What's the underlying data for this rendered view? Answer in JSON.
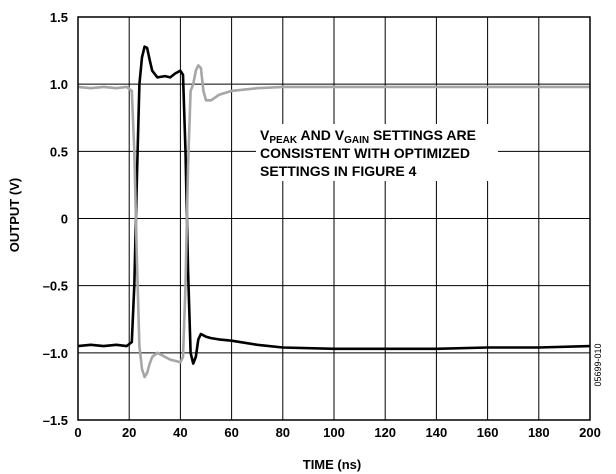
{
  "chart_data": {
    "type": "line",
    "xlabel": "TIME (ns)",
    "ylabel": "OUTPUT (V)",
    "xlim": [
      0,
      200
    ],
    "ylim": [
      -1.5,
      1.5
    ],
    "x_ticks": [
      0,
      20,
      40,
      60,
      80,
      100,
      120,
      140,
      160,
      180,
      200
    ],
    "x_tick_labels": [
      "0",
      "20",
      "40",
      "60",
      "80",
      "100",
      "120",
      "140",
      "160",
      "180",
      "200"
    ],
    "y_ticks": [
      1.5,
      1.0,
      0.5,
      0,
      -0.5,
      -1.0,
      -1.5
    ],
    "y_tick_labels": [
      "1.5",
      "1.0",
      "0.5",
      "0",
      "–0.5",
      "–1.0",
      "–1.5"
    ],
    "grid": true,
    "annotation": {
      "line1": {
        "a": "V",
        "a_sub": "PEAK",
        "b": " AND V",
        "b_sub": "GAIN",
        "c": " SETTINGS ARE"
      },
      "line2": "CONSISTENT WITH OPTIMIZED",
      "line3": "SETTINGS IN FIGURE 4"
    },
    "figure_code": "05699-010",
    "series": [
      {
        "color": "#000000",
        "points": [
          [
            0,
            -0.95
          ],
          [
            5,
            -0.94
          ],
          [
            10,
            -0.95
          ],
          [
            15,
            -0.94
          ],
          [
            19,
            -0.95
          ],
          [
            21,
            -0.92
          ],
          [
            22,
            -0.5
          ],
          [
            23,
            0.3
          ],
          [
            24,
            1.0
          ],
          [
            25,
            1.2
          ],
          [
            26,
            1.28
          ],
          [
            27,
            1.27
          ],
          [
            28,
            1.18
          ],
          [
            29,
            1.1
          ],
          [
            31,
            1.05
          ],
          [
            34,
            1.06
          ],
          [
            36,
            1.05
          ],
          [
            38,
            1.08
          ],
          [
            40,
            1.1
          ],
          [
            41,
            1.07
          ],
          [
            42,
            0.5
          ],
          [
            43,
            -0.4
          ],
          [
            44,
            -1.0
          ],
          [
            45,
            -1.08
          ],
          [
            46,
            -1.03
          ],
          [
            47,
            -0.9
          ],
          [
            48,
            -0.86
          ],
          [
            50,
            -0.88
          ],
          [
            52,
            -0.89
          ],
          [
            55,
            -0.9
          ],
          [
            60,
            -0.91
          ],
          [
            70,
            -0.94
          ],
          [
            80,
            -0.96
          ],
          [
            100,
            -0.97
          ],
          [
            120,
            -0.97
          ],
          [
            140,
            -0.97
          ],
          [
            160,
            -0.96
          ],
          [
            180,
            -0.96
          ],
          [
            200,
            -0.95
          ]
        ]
      },
      {
        "color": "#a6a6a6",
        "points": [
          [
            0,
            0.98
          ],
          [
            5,
            0.97
          ],
          [
            10,
            0.98
          ],
          [
            15,
            0.97
          ],
          [
            19,
            0.98
          ],
          [
            21,
            0.95
          ],
          [
            22,
            0.5
          ],
          [
            23,
            -0.3
          ],
          [
            24,
            -0.95
          ],
          [
            25,
            -1.12
          ],
          [
            26,
            -1.18
          ],
          [
            27,
            -1.15
          ],
          [
            28,
            -1.08
          ],
          [
            29,
            -1.03
          ],
          [
            31,
            -1.0
          ],
          [
            34,
            -1.03
          ],
          [
            36,
            -1.05
          ],
          [
            38,
            -1.06
          ],
          [
            40,
            -1.07
          ],
          [
            41,
            -1.03
          ],
          [
            42,
            -0.5
          ],
          [
            43,
            0.4
          ],
          [
            44,
            0.95
          ],
          [
            45,
            1.0
          ],
          [
            46,
            1.1
          ],
          [
            47,
            1.14
          ],
          [
            48,
            1.12
          ],
          [
            49,
            0.95
          ],
          [
            50,
            0.88
          ],
          [
            52,
            0.88
          ],
          [
            55,
            0.92
          ],
          [
            60,
            0.95
          ],
          [
            70,
            0.97
          ],
          [
            80,
            0.98
          ],
          [
            100,
            0.98
          ],
          [
            120,
            0.98
          ],
          [
            140,
            0.98
          ],
          [
            160,
            0.98
          ],
          [
            180,
            0.98
          ],
          [
            200,
            0.98
          ]
        ]
      }
    ]
  }
}
